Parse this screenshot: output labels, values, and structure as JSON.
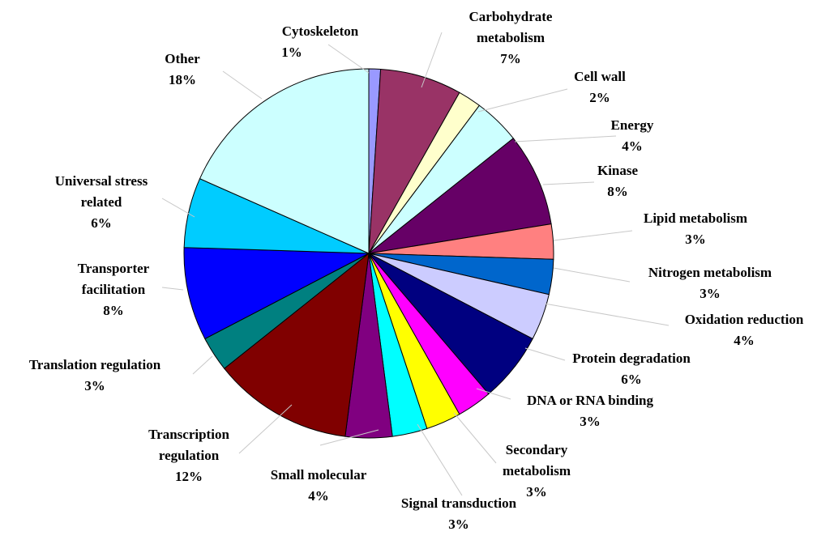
{
  "chart_data": {
    "type": "pie",
    "title": "",
    "start_angle_deg": 0,
    "direction": "clockwise",
    "slices": [
      {
        "label": "Cytoskeleton",
        "value": 1,
        "pct_label": "1%",
        "color": "#9999ff"
      },
      {
        "label": "Carbohydrate metabolism",
        "value": 7,
        "pct_label": "7%",
        "color": "#993366"
      },
      {
        "label": "Cell wall",
        "value": 2,
        "pct_label": "2%",
        "color": "#ffffcc"
      },
      {
        "label": "Energy",
        "value": 4,
        "pct_label": "4%",
        "color": "#ccffff"
      },
      {
        "label": "Kinase",
        "value": 8,
        "pct_label": "8%",
        "color": "#660066"
      },
      {
        "label": "Lipid metabolism",
        "value": 3,
        "pct_label": "3%",
        "color": "#ff8080"
      },
      {
        "label": "Nitrogen metabolism",
        "value": 3,
        "pct_label": "3%",
        "color": "#0066cc"
      },
      {
        "label": "Oxidation reduction",
        "value": 4,
        "pct_label": "4%",
        "color": "#ccccff"
      },
      {
        "label": "Protein degradation",
        "value": 6,
        "pct_label": "6%",
        "color": "#000080"
      },
      {
        "label": "DNA or RNA binding",
        "value": 3,
        "pct_label": "3%",
        "color": "#ff00ff"
      },
      {
        "label": "Secondary metabolism",
        "value": 3,
        "pct_label": "3%",
        "color": "#ffff00"
      },
      {
        "label": "Signal transduction",
        "value": 3,
        "pct_label": "3%",
        "color": "#00ffff"
      },
      {
        "label": "Small molecular",
        "value": 4,
        "pct_label": "4%",
        "color": "#800080"
      },
      {
        "label": "Transcription regulation",
        "value": 12,
        "pct_label": "12%",
        "color": "#800000"
      },
      {
        "label": "Translation regulation",
        "value": 3,
        "pct_label": "3%",
        "color": "#008080"
      },
      {
        "label": "Transporter facilitation",
        "value": 8,
        "pct_label": "8%",
        "color": "#0000ff"
      },
      {
        "label": "Universal stress related",
        "value": 6,
        "pct_label": "6%",
        "color": "#00ccff"
      },
      {
        "label": "Other",
        "value": 18,
        "pct_label": "18%",
        "color": "#ccffff"
      }
    ]
  }
}
